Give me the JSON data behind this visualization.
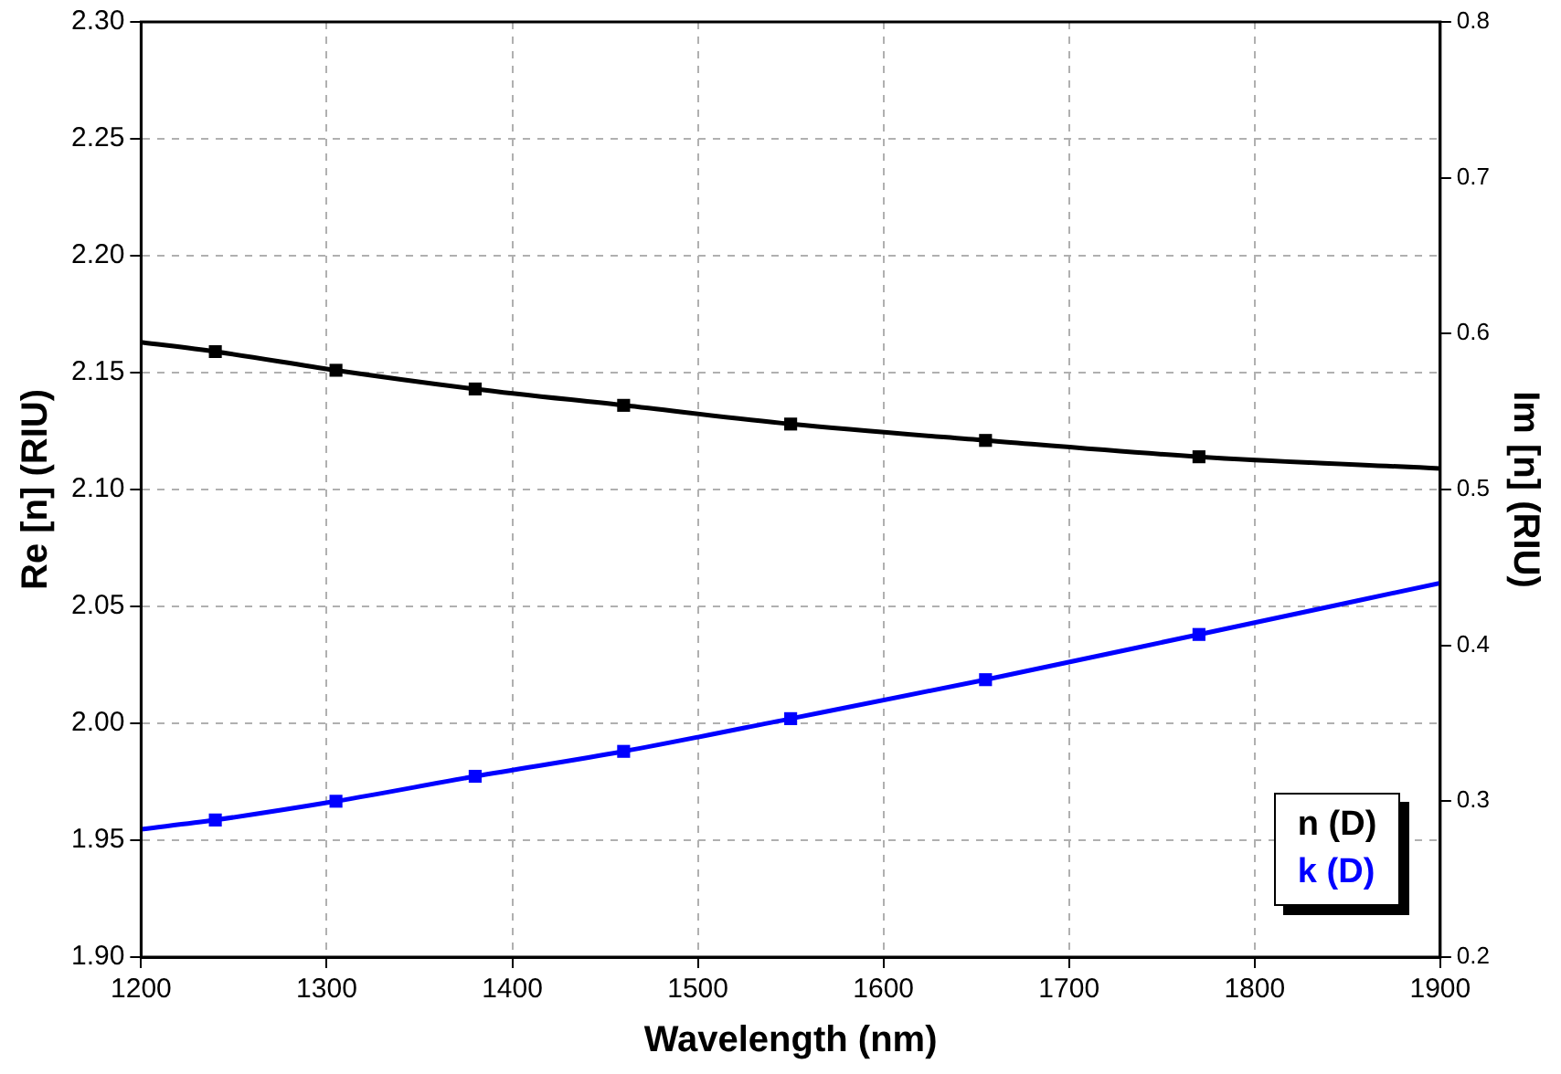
{
  "chart_data": {
    "type": "line",
    "xlabel": "Wavelength (nm)",
    "ylabel": "Re [n] (RIU)",
    "y2label": "Im [n] (RIU)",
    "xlim": [
      1200,
      1900
    ],
    "xticks": [
      1200,
      1300,
      1400,
      1500,
      1600,
      1700,
      1800,
      1900
    ],
    "ylim": [
      1.9,
      2.3
    ],
    "yticks": [
      {
        "value": 1.9,
        "label": "1.90"
      },
      {
        "value": 1.95,
        "label": "1.95"
      },
      {
        "value": 2.0,
        "label": "2.00"
      },
      {
        "value": 2.05,
        "label": "2.05"
      },
      {
        "value": 2.1,
        "label": "2.10"
      },
      {
        "value": 2.15,
        "label": "2.15"
      },
      {
        "value": 2.2,
        "label": "2.20"
      },
      {
        "value": 2.25,
        "label": "2.25"
      },
      {
        "value": 2.3,
        "label": "2.30"
      }
    ],
    "y2lim": [
      0.2,
      0.8
    ],
    "y2ticks": [
      0.2,
      0.3,
      0.4,
      0.5,
      0.6,
      0.7,
      0.8
    ],
    "grid": true,
    "legend": "bottom right",
    "line_style": "solid",
    "series": [
      {
        "color": "#000000",
        "marker": "none",
        "x": [
          1200,
          1240,
          1305,
          1380,
          1460,
          1550,
          1655,
          1770,
          1900
        ],
        "values": [
          2.163,
          2.159,
          2.151,
          2.143,
          2.136,
          2.128,
          2.121,
          2.114,
          2.109
        ]
      },
      {
        "type": "scatter",
        "name": "n (D)",
        "color": "#000000",
        "marker": "square",
        "x": [
          1240,
          1305,
          1380,
          1460,
          1550,
          1655,
          1770
        ],
        "values": [
          2.159,
          2.151,
          2.143,
          2.136,
          2.128,
          2.121,
          2.114
        ]
      },
      {
        "color": "#0000ff",
        "marker": "none",
        "axis": "y2",
        "x": [
          1200,
          1240,
          1305,
          1380,
          1460,
          1550,
          1655,
          1770,
          1900
        ],
        "values": [
          0.282,
          0.288,
          0.3,
          0.316,
          0.332,
          0.353,
          0.378,
          0.407,
          0.44
        ]
      },
      {
        "type": "scatter",
        "name": "k (D)",
        "color": "#0000ff",
        "marker": "square",
        "axis": "y2",
        "x": [
          1240,
          1305,
          1380,
          1460,
          1550,
          1655,
          1770
        ],
        "values": [
          0.288,
          0.3,
          0.316,
          0.332,
          0.353,
          0.378,
          0.407
        ]
      }
    ]
  }
}
